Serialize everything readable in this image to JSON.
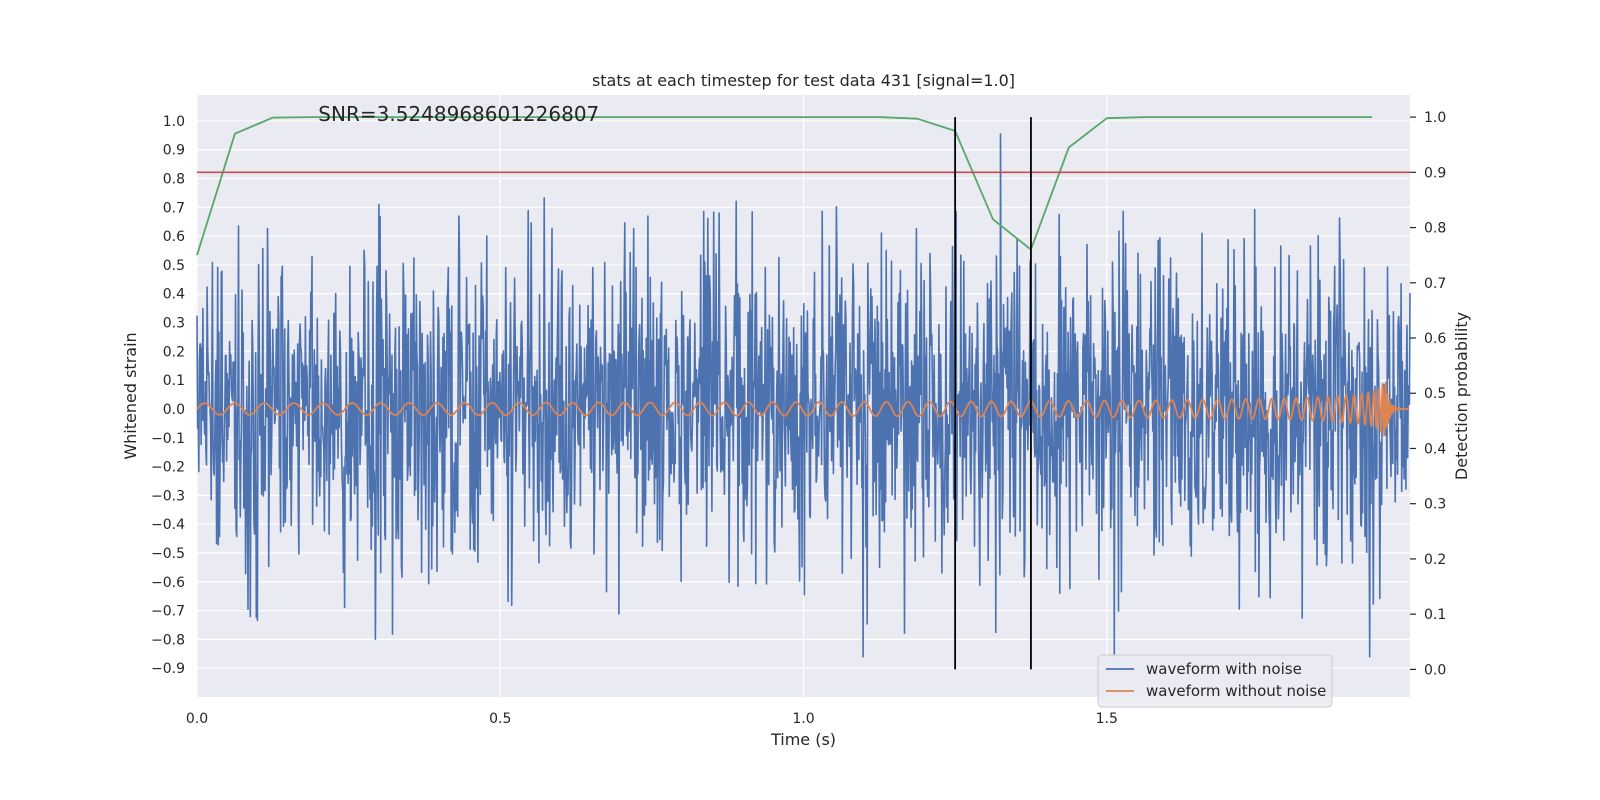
{
  "chart_data": {
    "type": "line",
    "title": "stats at each timestep for test data 431 [signal=1.0]",
    "annotation": "SNR=3.5248968601226807",
    "xlabel": "Time (s)",
    "ylabel_left": "Whitened strain",
    "ylabel_right": "Detection probability",
    "xlim": [
      0.0,
      2.0
    ],
    "ylim_left": [
      -1.0,
      1.09
    ],
    "ylim_right": [
      -0.05,
      1.04
    ],
    "x_ticks": [
      0.0,
      0.5,
      1.0,
      1.5
    ],
    "x_tick_labels": [
      "0.0",
      "0.5",
      "1.0",
      "1.5"
    ],
    "y_left_ticks": [
      1.0,
      0.9,
      0.8,
      0.7,
      0.6,
      0.5,
      0.4,
      0.3,
      0.2,
      0.1,
      0.0,
      -0.1,
      -0.2,
      -0.3,
      -0.4,
      -0.5,
      -0.6,
      -0.7,
      -0.8,
      -0.9
    ],
    "y_left_tick_labels": [
      "1.0",
      "0.9",
      "0.8",
      "0.7",
      "0.6",
      "0.5",
      "0.4",
      "0.3",
      "0.2",
      "0.1",
      "0.0",
      "−0.1",
      "−0.2",
      "−0.3",
      "−0.4",
      "−0.5",
      "−0.6",
      "−0.7",
      "−0.8",
      "−0.9"
    ],
    "y_right_ticks": [
      1.0,
      0.9,
      0.8,
      0.7,
      0.6,
      0.5,
      0.4,
      0.3,
      0.2,
      0.1,
      0.0
    ],
    "y_right_tick_labels": [
      "1.0",
      "0.9",
      "0.8",
      "0.7",
      "0.6",
      "0.5",
      "0.4",
      "0.3",
      "0.2",
      "0.1",
      "0.0"
    ],
    "series": [
      {
        "name": "waveform with noise",
        "color": "#4c72b0",
        "axis": "left",
        "kind": "noise",
        "n_points": 2048,
        "amplitude_range": [
          -0.86,
          1.0
        ],
        "note": "dense noisy whitened strain, individual samples not recoverable"
      },
      {
        "name": "waveform without noise",
        "color": "#dd8452",
        "axis": "left",
        "kind": "chirp",
        "amplitude_start": 0.02,
        "amplitude_end": 0.1,
        "cycles_start_per_s": 20,
        "merger_time": 1.96
      },
      {
        "name": "detection probability",
        "color": "#55a868",
        "axis": "right",
        "x": [
          0.0,
          0.0625,
          0.125,
          0.1875,
          0.25,
          0.3125,
          0.375,
          0.4375,
          0.5,
          0.5625,
          0.625,
          0.6875,
          0.75,
          0.8125,
          0.875,
          0.9375,
          1.0,
          1.0625,
          1.125,
          1.1875,
          1.25,
          1.3125,
          1.375,
          1.4375,
          1.5,
          1.5625,
          1.625,
          1.6875,
          1.75,
          1.8125,
          1.875,
          1.9375
        ],
        "y": [
          0.75,
          0.97,
          0.999,
          1.0,
          1.0,
          1.0,
          1.0,
          1.0,
          1.0,
          1.0,
          1.0,
          1.0,
          1.0,
          1.0,
          1.0,
          1.0,
          1.0,
          1.0,
          1.0,
          0.997,
          0.975,
          0.815,
          0.76,
          0.945,
          0.998,
          1.0,
          1.0,
          1.0,
          1.0,
          1.0,
          1.0,
          1.0
        ]
      }
    ],
    "hlines": [
      {
        "name": "threshold",
        "axis": "right",
        "y": 0.9,
        "color": "#c44e52"
      }
    ],
    "vlines": [
      {
        "name": "marker-1",
        "x": 1.25,
        "ymin_right": 0.0,
        "ymax_right": 1.0,
        "color": "#000000"
      },
      {
        "name": "marker-2",
        "x": 1.375,
        "ymin_right": 0.0,
        "ymax_right": 1.0,
        "color": "#000000"
      }
    ],
    "legend": {
      "placement": "lower-right",
      "entries": [
        {
          "label": "waveform with noise",
          "color": "#4c72b0"
        },
        {
          "label": "waveform without noise",
          "color": "#dd8452"
        }
      ]
    },
    "style": {
      "background": "#eaeaf2",
      "grid": true,
      "grid_color": "#ffffff"
    }
  }
}
